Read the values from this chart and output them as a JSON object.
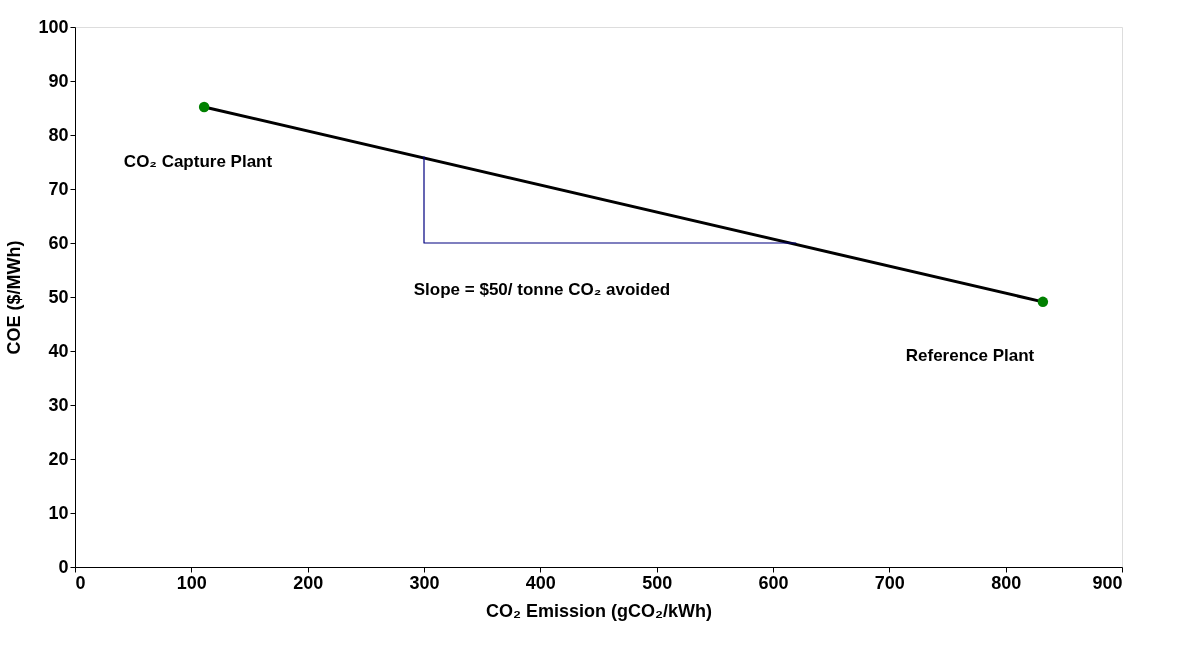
{
  "chart_data": {
    "type": "line",
    "xlabel": "CO₂ Emission (gCO₂/kWh)",
    "ylabel": "COE ($/MWh)",
    "xlim": [
      0,
      900
    ],
    "xticks": [
      0,
      100,
      200,
      300,
      400,
      500,
      600,
      700,
      800,
      900
    ],
    "ylim": [
      0,
      100
    ],
    "yticks": [
      0,
      10,
      20,
      30,
      40,
      50,
      60,
      70,
      80,
      90,
      100
    ],
    "grid": false,
    "series": [
      {
        "color": "#000000",
        "x": [
          111,
          832
        ],
        "values": [
          85.2,
          49.1
        ],
        "marker": "none"
      },
      {
        "type": "scatter",
        "color": "#008000",
        "x": [
          111,
          832
        ],
        "values": [
          85.2,
          49.1
        ],
        "marker": "circle"
      },
      {
        "color": "#000080",
        "x": [
          300,
          300,
          620
        ],
        "values": [
          76,
          60,
          60
        ],
        "marker": "none"
      }
    ],
    "annotations": [
      "CO₂ Capture Plant",
      "Slope = $50/ tonne CO₂ avoided",
      "Reference Plant"
    ]
  }
}
